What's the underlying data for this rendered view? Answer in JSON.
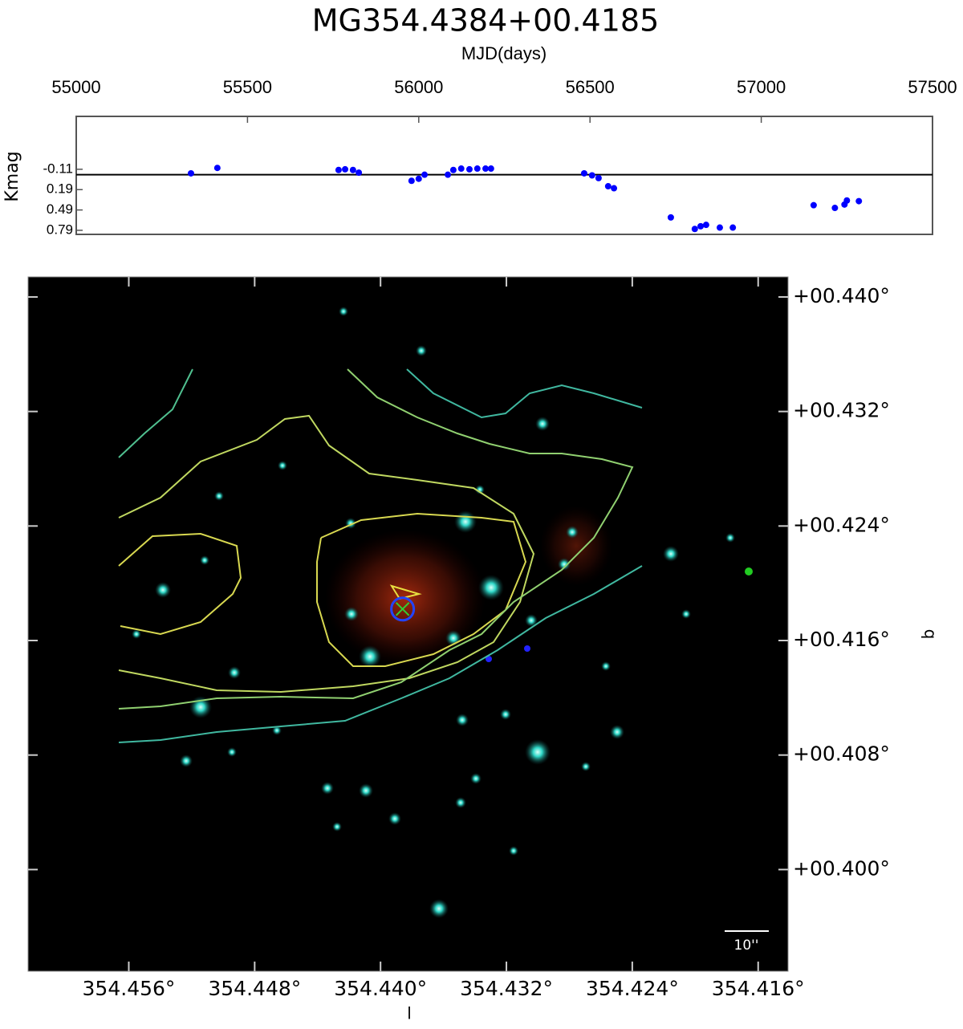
{
  "chart_data": [
    {
      "type": "scatter",
      "title": "MG354.4384+00.4185",
      "x_label": "MJD(days)",
      "y_label": "Kmag",
      "x": [
        55335,
        55412,
        55766,
        55785,
        55808,
        55825,
        55979,
        56000,
        56017,
        56085,
        56101,
        56124,
        56148,
        56171,
        56195,
        56211,
        56483,
        56506,
        56525,
        56553,
        56570,
        56736,
        56806,
        56823,
        56839,
        56879,
        56917,
        57153,
        57215,
        57243,
        57250,
        57285
      ],
      "values": [
        -0.05,
        -0.13,
        -0.1,
        -0.11,
        -0.1,
        -0.06,
        0.06,
        0.03,
        -0.03,
        -0.03,
        -0.1,
        -0.12,
        -0.11,
        -0.12,
        -0.12,
        -0.12,
        -0.05,
        -0.02,
        0.02,
        0.14,
        0.17,
        0.6,
        0.77,
        0.73,
        0.71,
        0.75,
        0.75,
        0.42,
        0.46,
        0.41,
        0.35,
        0.36
      ],
      "color": "#0000ff",
      "xlim": [
        55000,
        57500
      ],
      "xticks": [
        55000,
        55500,
        56000,
        56500,
        57000,
        57500
      ],
      "ylim": [
        -0.89,
        0.85
      ],
      "y_inverted": true,
      "yticks": [
        -0.11,
        0.19,
        0.49,
        0.79
      ],
      "reference_line": -0.03
    },
    {
      "type": "image",
      "x_label": "l",
      "y_label": "b",
      "scale_bar_label": "10''",
      "xlim": [
        354.4624,
        354.4141
      ],
      "xticks": [
        {
          "value": 354.456,
          "label": "354.456°"
        },
        {
          "value": 354.448,
          "label": "354.448°"
        },
        {
          "value": 354.44,
          "label": "354.440°"
        },
        {
          "value": 354.432,
          "label": "354.432°"
        },
        {
          "value": 354.424,
          "label": "354.424°"
        },
        {
          "value": 354.416,
          "label": "354.416°"
        }
      ],
      "ylim": [
        0.3929,
        0.4414
      ],
      "yticks": [
        {
          "value": 0.44,
          "label": "+00.440°"
        },
        {
          "value": 0.432,
          "label": "+00.432°"
        },
        {
          "value": 0.424,
          "label": "+00.424°"
        },
        {
          "value": 0.416,
          "label": "+00.416°"
        },
        {
          "value": 0.408,
          "label": "+00.408°"
        },
        {
          "value": 0.4,
          "label": "+00.400°"
        }
      ],
      "source_x": 354.4386,
      "source_y": 0.4182
    }
  ]
}
